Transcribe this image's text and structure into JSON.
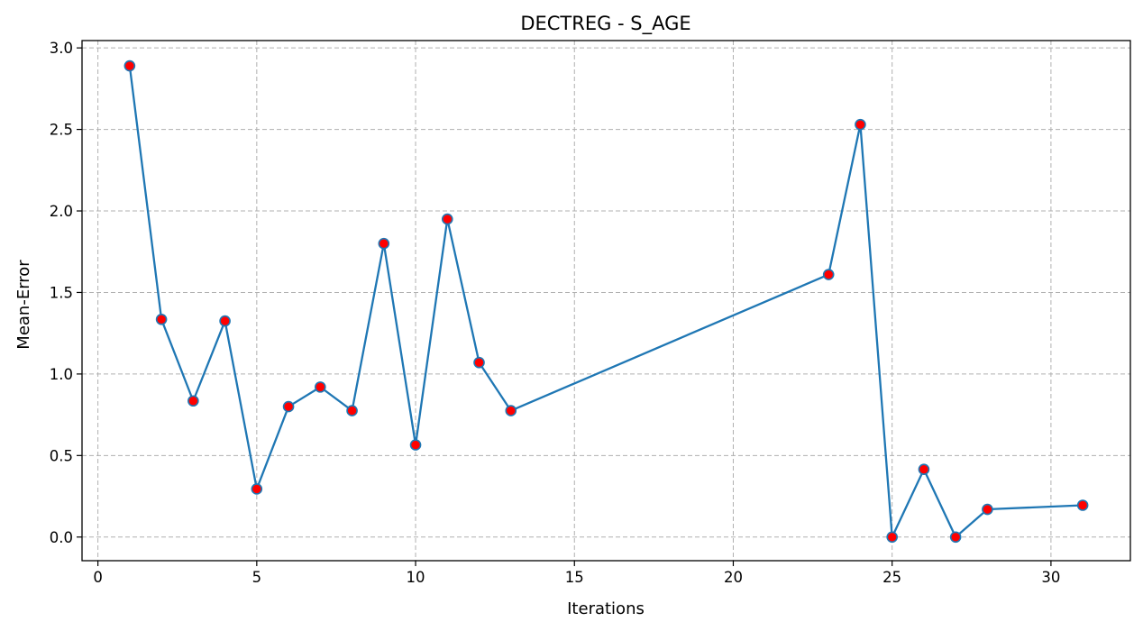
{
  "chart_data": {
    "type": "line",
    "title": "DECTREG - S_AGE",
    "xlabel": "Iterations",
    "ylabel": "Mean-Error",
    "xlim": [
      -0.5,
      32.5
    ],
    "ylim": [
      -0.145,
      3.045
    ],
    "xticks": [
      0,
      5,
      10,
      15,
      20,
      25,
      30
    ],
    "yticks": [
      0.0,
      0.5,
      1.0,
      1.5,
      2.0,
      2.5,
      3.0
    ],
    "grid": true,
    "line_color": "#1f77b4",
    "marker_color": "#ff0000",
    "marker_edge_color": "#1f77b4",
    "series": [
      {
        "x": [
          1,
          2,
          3,
          4,
          5,
          6,
          7,
          8,
          9,
          10,
          11,
          12,
          13,
          23,
          24,
          25,
          26,
          27,
          28,
          31
        ],
        "y": [
          2.89,
          1.335,
          0.835,
          1.325,
          0.295,
          0.8,
          0.92,
          0.775,
          1.8,
          0.565,
          1.95,
          1.07,
          0.775,
          1.61,
          2.53,
          0.0,
          0.415,
          0.0,
          0.17,
          0.195
        ]
      }
    ]
  }
}
